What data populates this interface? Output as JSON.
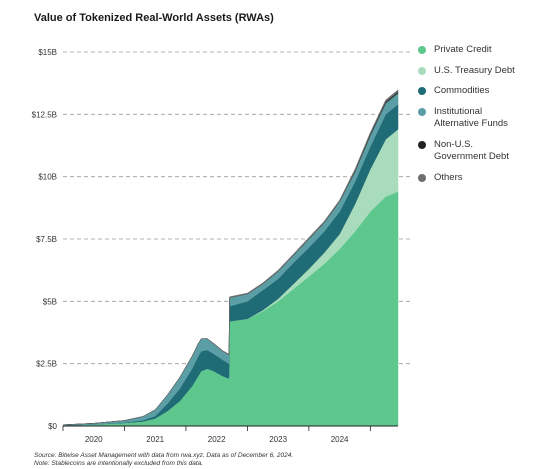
{
  "chart_data": {
    "type": "area",
    "title": "Value of Tokenized Real-World Assets (RWAs)",
    "y_tick_labels": [
      "$0",
      "$2.5B",
      "$5B",
      "$7.5B",
      "$10B",
      "$12.5B",
      "$15B"
    ],
    "y_ticks": [
      0,
      2.5,
      5,
      7.5,
      10,
      12.5,
      15
    ],
    "ylim": [
      0,
      15
    ],
    "xlim": [
      2019.5,
      2024.95
    ],
    "x_tick_labels": [
      "2020",
      "2021",
      "2022",
      "2023",
      "2024"
    ],
    "x_label_positions": [
      2020,
      2021,
      2022,
      2023,
      2024
    ],
    "x_tick_marks": [
      2019.5,
      2020.5,
      2021.5,
      2022.5,
      2023.5,
      2024.5
    ],
    "grid": "horizontal dashed",
    "legend_position": "right",
    "x": [
      2019.5,
      2020.0,
      2020.5,
      2020.8,
      2021.0,
      2021.2,
      2021.4,
      2021.6,
      2021.7,
      2021.75,
      2021.85,
      2021.95,
      2022.1,
      2022.2,
      2022.21,
      2022.5,
      2022.75,
      2023.0,
      2023.25,
      2023.5,
      2023.75,
      2024.0,
      2024.25,
      2024.5,
      2024.75,
      2024.95
    ],
    "series": [
      {
        "name": "Private Credit",
        "color": "#5ec78e",
        "values": [
          0.03,
          0.06,
          0.12,
          0.18,
          0.3,
          0.6,
          1.0,
          1.6,
          2.0,
          2.2,
          2.3,
          2.2,
          2.0,
          1.9,
          4.2,
          4.3,
          4.6,
          5.0,
          5.5,
          6.0,
          6.5,
          7.1,
          7.8,
          8.6,
          9.2,
          9.4
        ]
      },
      {
        "name": "U.S. Treasury Debt",
        "color": "#a8dcbc",
        "values": [
          0,
          0,
          0,
          0,
          0,
          0,
          0,
          0,
          0,
          0,
          0,
          0,
          0,
          0,
          0,
          0,
          0.05,
          0.1,
          0.2,
          0.3,
          0.45,
          0.6,
          1.1,
          1.7,
          2.3,
          2.5
        ]
      },
      {
        "name": "Commodities",
        "color": "#1f6b76",
        "values": [
          0,
          0,
          0.02,
          0.05,
          0.1,
          0.3,
          0.5,
          0.7,
          0.8,
          0.8,
          0.75,
          0.7,
          0.65,
          0.6,
          0.6,
          0.7,
          0.8,
          0.8,
          0.85,
          0.85,
          0.85,
          0.9,
          0.9,
          0.9,
          1.0,
          1.0
        ]
      },
      {
        "name": "Institutional Alternative Funds",
        "color": "#5b9ea5",
        "values": [
          0.02,
          0.05,
          0.08,
          0.15,
          0.25,
          0.35,
          0.45,
          0.5,
          0.5,
          0.5,
          0.45,
          0.4,
          0.35,
          0.35,
          0.35,
          0.3,
          0.25,
          0.3,
          0.3,
          0.35,
          0.35,
          0.4,
          0.4,
          0.45,
          0.45,
          0.45
        ]
      },
      {
        "name": "Non-U.S. Government Debt",
        "color": "#222222",
        "values": [
          0,
          0,
          0,
          0,
          0,
          0,
          0,
          0,
          0,
          0,
          0,
          0,
          0,
          0,
          0,
          0,
          0,
          0,
          0,
          0,
          0,
          0,
          0.03,
          0.05,
          0.05,
          0.05
        ]
      },
      {
        "name": "Others",
        "color": "#6e6e6e",
        "values": [
          0,
          0,
          0,
          0,
          0,
          0,
          0,
          0,
          0,
          0,
          0,
          0.02,
          0.02,
          0.03,
          0.03,
          0.03,
          0.04,
          0.05,
          0.05,
          0.06,
          0.06,
          0.06,
          0.07,
          0.07,
          0.08,
          0.08
        ]
      }
    ]
  },
  "legend_labels": {
    "l0": "Private Credit",
    "l1": "U.S. Treasury Debt",
    "l2": "Commodities",
    "l3a": "Institutional",
    "l3b": "Alternative Funds",
    "l4a": "Non-U.S.",
    "l4b": "Government Debt",
    "l5": "Others"
  },
  "notes": {
    "source": "Source: Bitwise Asset Management with data from rwa.xyz. Data as of December 6, 2024.",
    "note": "Note: Stablecoins are intentionally excluded from this data."
  }
}
